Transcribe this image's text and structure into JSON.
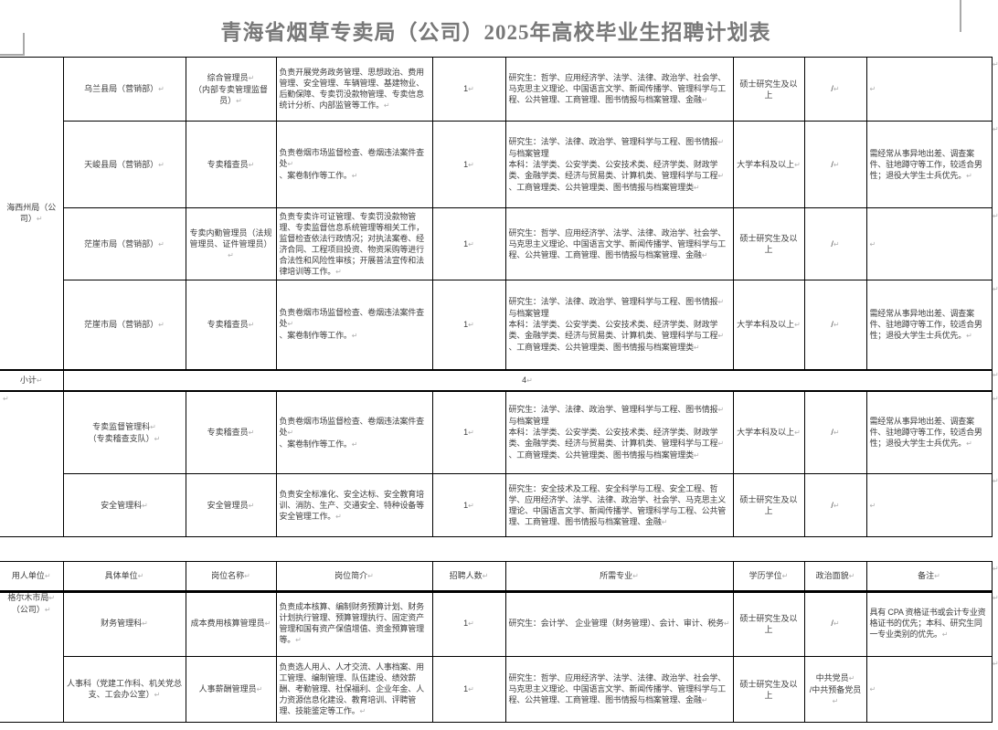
{
  "title": "青海省烟草专卖局（公司）2025年高校毕业生招聘计划表",
  "marks": {
    "return": "↵"
  },
  "columns": [
    "用人单位↵",
    "具体单位↵",
    "岗位名称↵",
    "岗位简介↵",
    "招聘人数↵",
    "所需专业↵",
    "学历学位↵",
    "政治面貌↵",
    "备注↵"
  ],
  "section1": {
    "org": "海西州局（公\n司）↵",
    "rows": [
      {
        "unit": "乌兰县局（营销部）↵",
        "position": "综合管理员↵\n（内部专卖管理监督员）↵",
        "duty": "负责开展党务政务管理、思想政治、费用管理、安全管理、车辆管理、基建物业、后勤保障、专卖罚没款物管理、专卖信息统计分析、内部监管等工作。↵",
        "count": "1↵",
        "majors": "研究生：哲学、应用经济学、法学、法律、政治学、社会学、马克思主义理论、中国语言文学、新闻传播学、管理科学与工程、公共管理、工商管理、图书情报与档案管理、金融↵",
        "degree": "硕士研究生及以上",
        "political": "/↵",
        "remark": "↵"
      },
      {
        "unit": "天峻县局（营销部）↵",
        "position": "专卖稽查员↵",
        "duty": "负责卷烟市场监督检查、卷烟违法案件查处↵\n、案卷制作等工作。↵",
        "count": "1↵",
        "majors": "研究生：法学、法律、政治学、管理科学与工程、图书情报↵\n与档案管理\n本科：法学类、公安学类、公安技术类、经济学类、财政学类、金融学类、经济与贸易类、计算机类、管理科学与工程↵\n、工商管理类、公共管理类、图书情报与档案管理类↵",
        "degree": "大学本科及以上↵",
        "political": "/↵",
        "remark": "需经常从事异地出差、调查案件、驻地蹲守等工作，较适合男性；退役大学生士兵优先。↵"
      },
      {
        "unit": "茫崖市局（营销部）↵",
        "position": "专卖内勤管理员（法规管理员、证件管理员）↵",
        "duty": "负责专卖许可证管理、专卖罚没款物管理、专卖监督信息系统管理等相关工作，监督检查依法行政情况；对执法案卷、经济合同、工程项目投资、物资采购等进行合法性和风险性审核；开展普法宣传和法律培训等工作。↵",
        "count": "1↵",
        "majors": "研究生：哲学、应用经济学、法学、法律、政治学、社会学、马克思主义理论、中国语言文学、新闻传播学、管理科学与工程、公共管理、工商管理、图书情报与档案管理、金融↵",
        "degree": "硕士研究生及以上",
        "political": "/↵",
        "remark": "↵"
      },
      {
        "unit": "茫崖市局（营销部）↵",
        "position": "专卖稽查员↵",
        "duty": "负责卷烟市场监督检查、卷烟违法案件查处↵\n、案卷制作等工作。↵",
        "count": "1↵",
        "majors": "研究生：法学、法律、政治学、管理科学与工程、图书情报↵\n与档案管理\n本科：法学类、公安学类、公安技术类、经济学类、财政学类、金融学类、经济与贸易类、计算机类、管理科学与工程↵\n、工商管理类、公共管理类、图书情报与档案管理类↵",
        "degree": "大学本科及以上↵",
        "political": "/↵",
        "remark": "需经常从事异地出差、调查案件、驻地蹲守等工作，较适合男性；退役大学生士兵优先。↵"
      }
    ],
    "subtotal": {
      "label": "小计↵",
      "value": "4↵"
    }
  },
  "section2": {
    "org": "↵",
    "rows": [
      {
        "unit": "专卖监督管理科↵\n（专卖稽查支队）↵",
        "position": "专卖稽查员↵",
        "duty": "负责卷烟市场监督检查、卷烟违法案件查处↵\n、案卷制作等工作。↵",
        "count": "1↵",
        "majors": "研究生：法学、法律、政治学、管理科学与工程、图书情报↵\n与档案管理\n本科：法学类、公安学类、公安技术类、经济学类、财政学类、金融学类、经济与贸易类、计算机类、管理科学与工程↵\n、工商管理类、公共管理类、图书情报与档案管理类↵",
        "degree": "大学本科及以上↵",
        "political": "/↵",
        "remark": "需经常从事异地出差、调查案件、驻地蹲守等工作，较适合男性；退役大学生士兵优先。↵"
      },
      {
        "unit": "安全管理科↵",
        "position": "安全管理员↵",
        "duty": "负责安全标准化、安全达标、安全教育培训、消防、生产、交通安全、特种设备等安全管理工作。↵",
        "count": "1↵",
        "majors": "研究生：安全技术及工程、安全科学与工程、安全工程、哲学、应用经济学、法学、法律、政治学、社会学、马克思主义理论、中国语言文学、新闻传播学、管理科学与工程、公共管理、工商管理、图书情报与档案管理、金融↵",
        "degree": "硕士研究生及以上",
        "political": "/↵",
        "remark": "↵"
      }
    ]
  },
  "section3": {
    "org": "格尔木市局↵\n（公司）↵",
    "rows": [
      {
        "unit": "财务管理科↵",
        "position": "成本费用核算管理员↵",
        "duty": "负责成本核算、编制财务预算计划、财务计划执行管理、预算管理执行、固定资产管理和国有资产保值增值、资金预算管理等。↵",
        "count": "1↵",
        "majors": "研究生：会计学、 企业管理（财务管理）、会计、审计、税务↵",
        "degree": "硕士研究生及以上",
        "political": "/↵",
        "remark": "具有 CPA 资格证书或会计专业资格证书的优先；本科、研究生同一专业类别的优先。↵"
      },
      {
        "unit": "人事科（党建工作科、机关党总支、工会办公室）↵",
        "position": "人事薪酬管理员↵",
        "duty": "负责选人用人、人才交流、人事档案、用工管理、编制管理、队伍建设、绩效薪酬、考勤管理、社保福利、企业年金、人力资源信息化建设、教育培训、评聘管理、技能鉴定等工作。↵",
        "count": "1↵",
        "majors": "研究生：哲学、应用经济学、法学、法律、政治学、社会学、马克思主义理论、中国语言文学、新闻传播学、管理科学与工程、公共管理、工商管理、图书情报与档案管理、金融↵",
        "degree": "硕士研究生及以上",
        "political": "中共党员↵\n/中共预备党员↵",
        "remark": "↵"
      }
    ]
  }
}
